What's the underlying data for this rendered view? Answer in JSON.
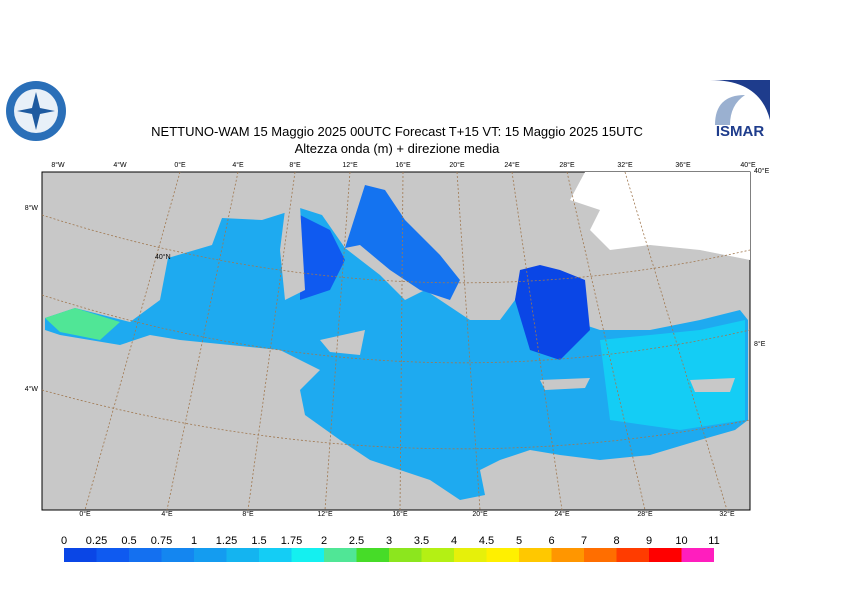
{
  "header": {
    "title": "NETTUNO-WAM  15   Maggio  2025 00UTC Forecast T+15 VT: 15   Maggio  2025 15UTC",
    "subtitle": "Altezza onda (m) + direzione media",
    "logo_right": "ISMAR"
  },
  "map": {
    "top_labels": [
      "8°W",
      "4°W",
      "0°E",
      "4°E",
      "8°E",
      "12°E",
      "16°E",
      "20°E",
      "24°E",
      "28°E",
      "32°E",
      "36°E",
      "40°E"
    ],
    "bottom_labels": [
      "0°E",
      "4°E",
      "8°E",
      "12°E",
      "16°E",
      "20°E",
      "24°E",
      "28°E",
      "32°E"
    ],
    "left_labels": [
      "8°W",
      "4°W"
    ],
    "right_labels": [
      "40°E",
      "8°E"
    ],
    "inner_label": "40°N"
  },
  "colorbar": {
    "ticks": [
      0,
      0.25,
      0.5,
      0.75,
      1,
      1.25,
      1.5,
      1.75,
      2,
      2.5,
      3,
      3.5,
      4,
      4.5,
      5,
      6,
      7,
      8,
      9,
      10,
      11
    ],
    "colors": [
      "#0a46e6",
      "#0f5af0",
      "#1470f0",
      "#1486f0",
      "#149cf0",
      "#14b4f0",
      "#14cdf5",
      "#14f0f0",
      "#50e696",
      "#46dc28",
      "#8ce61e",
      "#b4f014",
      "#e6f00a",
      "#fff000",
      "#ffc800",
      "#ff9600",
      "#ff6e00",
      "#ff3c00",
      "#ff0000",
      "#ff1ebe"
    ]
  }
}
